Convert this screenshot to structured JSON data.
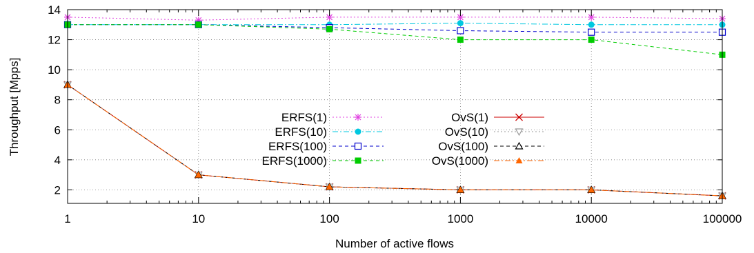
{
  "chart_data": {
    "type": "line",
    "xscale": "log",
    "x": [
      1,
      10,
      100,
      1000,
      10000,
      100000
    ],
    "x_tick_labels": [
      "1",
      "10",
      "100",
      "1000",
      "10000",
      "100000"
    ],
    "y_tick_labels": [
      "2",
      "4",
      "6",
      "8",
      "10",
      "12",
      "14"
    ],
    "xlabel": "Number of active flows",
    "ylabel": "Throughput [Mpps]",
    "ylim": [
      1.1,
      14
    ],
    "grid": true,
    "legend_position": "center, two columns",
    "series": [
      {
        "name": "ERFS(1)",
        "values": [
          13.5,
          13.3,
          13.5,
          13.5,
          13.5,
          13.4
        ],
        "color": "#e040e0",
        "dash": "dotted",
        "marker": "star"
      },
      {
        "name": "ERFS(10)",
        "values": [
          13.0,
          13.0,
          13.0,
          13.1,
          13.0,
          13.0
        ],
        "color": "#00c8e0",
        "dash": "dashdot",
        "marker": "circle-filled"
      },
      {
        "name": "ERFS(100)",
        "values": [
          13.0,
          13.0,
          12.8,
          12.6,
          12.5,
          12.5
        ],
        "color": "#0000cc",
        "dash": "dashed",
        "marker": "square-open"
      },
      {
        "name": "ERFS(1000)",
        "values": [
          13.0,
          13.0,
          12.7,
          12.0,
          12.0,
          11.0
        ],
        "color": "#00cc00",
        "dash": "dashed",
        "marker": "square-filled"
      },
      {
        "name": "OvS(1)",
        "values": [
          9.0,
          3.0,
          2.2,
          2.0,
          2.0,
          1.6
        ],
        "color": "#cc0000",
        "dash": "solid",
        "marker": "cross"
      },
      {
        "name": "OvS(10)",
        "values": [
          9.0,
          3.0,
          2.2,
          2.0,
          2.0,
          1.6
        ],
        "color": "#999999",
        "dash": "dotted",
        "marker": "triangle-down-open"
      },
      {
        "name": "OvS(100)",
        "values": [
          9.0,
          3.0,
          2.2,
          2.0,
          2.0,
          1.6
        ],
        "color": "#000000",
        "dash": "dashed",
        "marker": "triangle-up-open"
      },
      {
        "name": "OvS(1000)",
        "values": [
          9.0,
          3.0,
          2.2,
          2.0,
          2.0,
          1.6
        ],
        "color": "#ff6600",
        "dash": "dashdot",
        "marker": "triangle-up-filled"
      }
    ]
  }
}
